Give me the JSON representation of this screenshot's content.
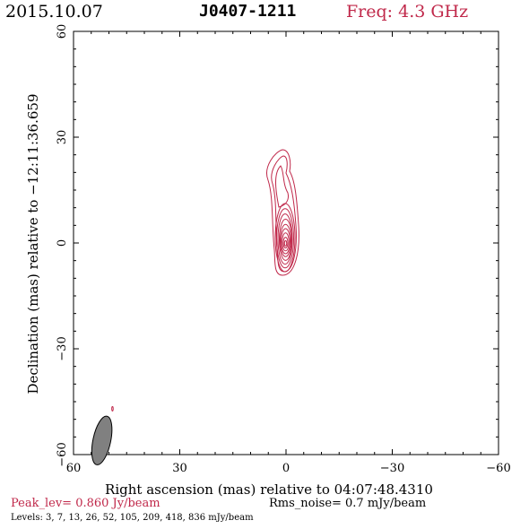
{
  "header": {
    "date": "2015.10.07",
    "source": "J0407-1211",
    "freq": "Freq: 4.3 GHz"
  },
  "footer": {
    "peak": "Peak_lev=  0.860 Jy/beam",
    "rms": "Rms_noise=  0.7 mJy/beam",
    "levels": "Levels:   3,   7,  13,  26,  52, 105, 209, 418, 836 mJy/beam"
  },
  "colors": {
    "contour": "#c0284a",
    "beam": "#808080"
  },
  "chart_data": {
    "type": "contour",
    "xlabel": "Right ascension (mas) relative to 04:07:48.4310",
    "ylabel": "Declination (mas) relative to −12:11:36.659",
    "xlim": [
      60,
      -60
    ],
    "ylim": [
      -60,
      60
    ],
    "xticks": [
      60,
      30,
      0,
      -30,
      -60
    ],
    "yticks": [
      -60,
      -30,
      0,
      30,
      60
    ],
    "xtick_labels": [
      "60",
      "30",
      "0",
      "−30",
      "−60"
    ],
    "ytick_labels": [
      "−60",
      "−30",
      "0",
      "30",
      "60"
    ],
    "contour_levels_mJy": [
      3,
      7,
      13,
      26,
      52,
      105,
      209,
      418,
      836
    ],
    "core": {
      "x": 0,
      "y": 0
    },
    "jet_extent": {
      "x": [
        5,
        -4
      ],
      "y": [
        -9,
        26
      ]
    },
    "beam": {
      "x": 52,
      "y": -56,
      "major": 7,
      "minor": 2.5
    }
  }
}
